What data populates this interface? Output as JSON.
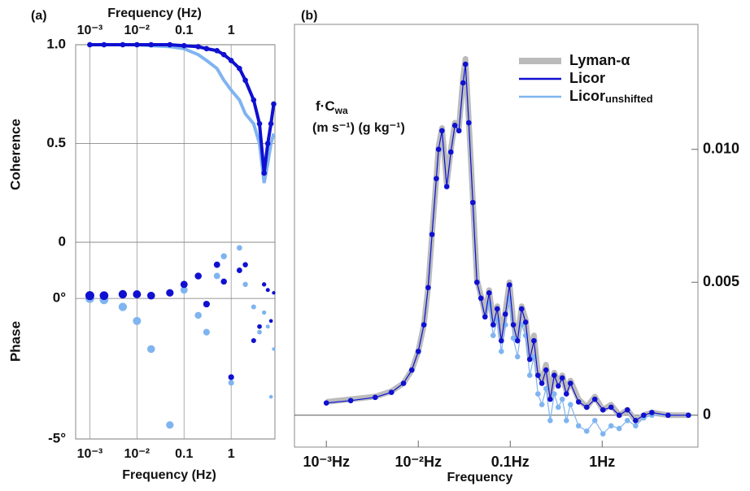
{
  "chart_data": [
    {
      "type": "line",
      "title": "(a)",
      "xlabel": "Frequency (Hz)",
      "ylabel": "Coherence",
      "xscale": "log",
      "x": [
        0.001,
        0.002,
        0.005,
        0.01,
        0.02,
        0.05,
        0.1,
        0.2,
        0.3,
        0.5,
        0.7,
        1,
        1.5,
        2,
        3,
        4,
        5,
        6,
        7,
        8
      ],
      "series": [
        {
          "name": "Licor",
          "color": "#7fb4f0",
          "values": [
            1,
            1,
            1,
            1,
            0.995,
            0.99,
            0.98,
            0.95,
            0.92,
            0.88,
            0.82,
            0.77,
            0.72,
            0.65,
            0.6,
            0.5,
            0.3,
            0.4,
            0.5,
            0.55
          ]
        },
        {
          "name": "Licor",
          "color": "#1010d0",
          "values": [
            1,
            1,
            1,
            1,
            1,
            1,
            0.995,
            0.99,
            0.98,
            0.97,
            0.95,
            0.92,
            0.88,
            0.82,
            0.72,
            0.6,
            0.35,
            0.5,
            0.6,
            0.7
          ]
        }
      ],
      "xlim": [
        0.0005,
        8.5
      ],
      "xticks": [
        {
          "value": 0.001,
          "label": "10⁻³"
        },
        {
          "value": 0.01,
          "label": "10⁻²"
        },
        0.1,
        1
      ],
      "ylim": [
        0,
        1
      ],
      "yticks": [
        0,
        0.5,
        {
          "value": 1,
          "label": "1.0"
        }
      ],
      "grid": true
    },
    {
      "type": "scatter",
      "xlabel": "Frequency (Hz)",
      "ylabel": "Phase",
      "xscale": "log",
      "x": [
        0.001,
        0.002,
        0.005,
        0.01,
        0.02,
        0.05,
        0.1,
        0.2,
        0.3,
        0.5,
        0.7,
        1,
        1.5,
        2,
        3,
        4,
        5,
        6,
        7,
        8
      ],
      "series": [
        {
          "name": "Licor",
          "color": "#7fb4f0",
          "values": [
            0,
            -0.05,
            -0.3,
            -0.8,
            -1.8,
            -4.5,
            0.3,
            -0.6,
            -1.2,
            0.8,
            1.5,
            -3.0,
            1.8,
            0.5,
            -0.3,
            -1.2,
            -0.5,
            -1.0,
            -3.5,
            -1.8
          ]
        },
        {
          "name": "Licor",
          "color": "#1010d0",
          "values": [
            0.1,
            0.1,
            0.15,
            0.15,
            0.1,
            0.2,
            0.5,
            0.8,
            -0.2,
            1.2,
            0.6,
            -2.8,
            1.0,
            1.2,
            -1.5,
            -1.0,
            0.5,
            0.3,
            -0.8,
            0.2
          ]
        }
      ],
      "xlim": [
        0.0005,
        8.5
      ],
      "xticks": [
        {
          "value": 0.001,
          "label": "10⁻³"
        },
        {
          "value": 0.01,
          "label": "10⁻²"
        },
        0.1,
        1
      ],
      "ylim": [
        -5,
        2
      ],
      "yticks": [
        {
          "value": -5,
          "label": "-5°"
        },
        {
          "value": 0,
          "label": "0°"
        }
      ],
      "grid": true
    },
    {
      "type": "line",
      "title": "(b)",
      "xlabel": "Frequency",
      "ylabel": "f·C",
      "ylabel_sub": "wa",
      "ylabel_units": "(m s⁻¹)  (g kg⁻¹)",
      "xscale": "log",
      "x": [
        0.001,
        0.00184,
        0.0034,
        0.0051,
        0.0069,
        0.0085,
        0.01,
        0.0115,
        0.0128,
        0.0141,
        0.0157,
        0.0166,
        0.0181,
        0.0204,
        0.0226,
        0.025,
        0.0277,
        0.0307,
        0.0326,
        0.0354,
        0.0392,
        0.0434,
        0.048,
        0.0532,
        0.0589,
        0.0652,
        0.0722,
        0.08,
        0.0885,
        0.098,
        0.108,
        0.12,
        0.133,
        0.147,
        0.163,
        0.181,
        0.2,
        0.221,
        0.245,
        0.272,
        0.301,
        0.333,
        0.368,
        0.408,
        0.452,
        0.553,
        0.679,
        0.832,
        1.02,
        1.25,
        1.53,
        1.88,
        2.31,
        2.83,
        3.47,
        5.21,
        8.67
      ],
      "series": [
        {
          "name": "Lyman-α",
          "color": "#bbbbbb",
          "values": [
            0.0005,
            0.0006,
            0.0007,
            0.0009,
            0.0012,
            0.0017,
            0.0024,
            0.0034,
            0.0048,
            0.0068,
            0.0089,
            0.0101,
            0.0108,
            0.0087,
            0.01,
            0.011,
            0.0108,
            0.0127,
            0.0134,
            0.0111,
            0.0081,
            0.0051,
            0.0045,
            0.0038,
            0.0047,
            0.0035,
            0.0041,
            0.0029,
            0.0039,
            0.005,
            0.0035,
            0.0029,
            0.0041,
            0.0036,
            0.0022,
            0.003,
            0.0016,
            0.0013,
            0.0019,
            0.0007,
            0.0016,
            0.0012,
            0.0015,
            0.0009,
            0.0013,
            0.0006,
            0.0003,
            0.0007,
            0.0002,
            0.0004,
            0.0,
            0.0002,
            -0.0002,
            0.0,
            0.0001,
            0.0,
            0.0
          ]
        },
        {
          "name": "Licor",
          "color": "#1010d0",
          "values": [
            0.00046,
            0.00055,
            0.00067,
            0.00086,
            0.0012,
            0.0017,
            0.0024,
            0.0034,
            0.0048,
            0.0068,
            0.0089,
            0.01,
            0.0107,
            0.0086,
            0.0099,
            0.0109,
            0.0107,
            0.0125,
            0.0132,
            0.011,
            0.008,
            0.005,
            0.0044,
            0.0037,
            0.0046,
            0.0034,
            0.004,
            0.0028,
            0.0038,
            0.0049,
            0.0034,
            0.0028,
            0.004,
            0.0035,
            0.0021,
            0.0028,
            0.0015,
            0.0012,
            0.0017,
            0.0006,
            0.0015,
            0.0011,
            0.0014,
            0.0008,
            0.0012,
            0.0005,
            0.0003,
            0.0006,
            0.0002,
            0.0003,
            0.0,
            0.0002,
            -0.0002,
            0.0,
            0.0001,
            0.0,
            0.0
          ]
        },
        {
          "name": "Licorunshifted",
          "color": "#7fb4f0",
          "values": [
            0.00046,
            0.00055,
            0.00067,
            0.00086,
            0.0012,
            0.0017,
            0.0024,
            0.0034,
            0.0048,
            0.0068,
            0.0089,
            0.01,
            0.0107,
            0.0086,
            0.0099,
            0.0109,
            0.0107,
            0.0125,
            0.0132,
            0.011,
            0.008,
            0.005,
            0.0044,
            0.0037,
            0.0042,
            0.003,
            0.0036,
            0.0024,
            0.0034,
            0.0044,
            0.0029,
            0.0022,
            0.0034,
            0.003,
            0.0015,
            0.0022,
            0.0008,
            0.0004,
            0.001,
            -0.0002,
            0.0008,
            0.0003,
            0.0006,
            -0.0002,
            0.0004,
            -0.0004,
            -0.0006,
            -0.0002,
            -0.0007,
            -0.0004,
            -0.0005,
            -0.0002,
            -0.0004,
            -0.0001,
            0,
            0,
            0
          ]
        }
      ],
      "xlim": [
        0.00045,
        11
      ],
      "xticks": [
        {
          "value": 0.001,
          "label": "10⁻³Hz"
        },
        {
          "value": 0.01,
          "label": "10⁻²Hz"
        },
        {
          "value": 0.1,
          "label": "0.1Hz"
        },
        {
          "value": 1,
          "label": "1Hz"
        }
      ],
      "ylim": [
        -0.0012,
        0.0147
      ],
      "yticks": [
        0,
        0.005,
        {
          "value": 0.01,
          "label": "0.010"
        }
      ],
      "grid": false,
      "legend": "upper right"
    }
  ]
}
